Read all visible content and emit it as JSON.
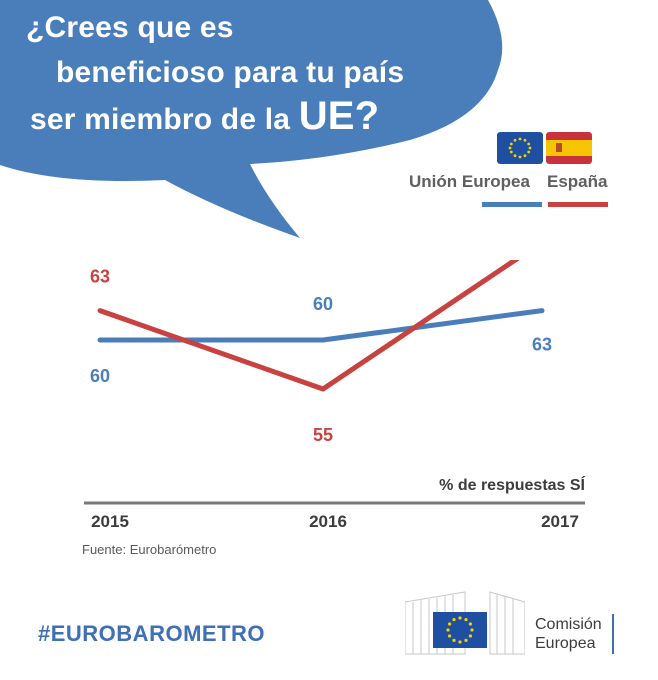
{
  "question": {
    "line1": "¿Crees que es",
    "line2": "beneficioso para tu país",
    "line3_prefix": "ser miembro de la ",
    "line3_emph": "UE?"
  },
  "legend": {
    "eu_label": "Unión Europea",
    "es_label": "España",
    "eu_flag_icon": "eu-flag-icon",
    "es_flag_icon": "spain-flag-icon"
  },
  "colors": {
    "bubble": "#4a7ebb",
    "eu": "#4a7ebb",
    "es": "#c8423f",
    "axis": "#7a7a7a"
  },
  "chart_data": {
    "type": "line",
    "categories": [
      "2015",
      "2016",
      "2017"
    ],
    "series": [
      {
        "name": "Unión Europea",
        "values": [
          60,
          60,
          63
        ],
        "color": "#4a7ebb"
      },
      {
        "name": "España",
        "values": [
          63,
          55,
          70
        ],
        "color": "#c8423f"
      }
    ],
    "axis_caption": "% de respuestas SÍ",
    "grid": false,
    "legend_position": "top-right"
  },
  "source": "Fuente: Eurobarómetro",
  "hashtag": "#EUROBAROMETRO",
  "logo": {
    "line1": "Comisión",
    "line2": "Europea",
    "icon": "european-commission-logo-icon"
  }
}
